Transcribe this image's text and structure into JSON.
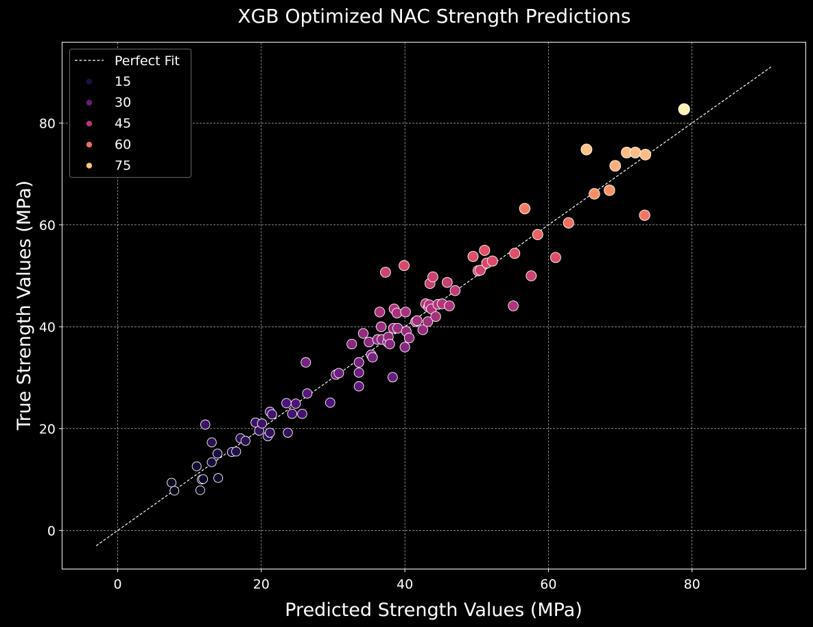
{
  "chart_data": {
    "type": "scatter",
    "title": "XGB Optimized NAC Strength Predictions",
    "xlabel": "Predicted Strength Values (MPa)",
    "ylabel": "True Strength Values (MPa)",
    "xlim": [
      -7.7,
      95.8
    ],
    "ylim": [
      -7.5,
      95.8
    ],
    "xticks": [
      "0",
      "20",
      "40",
      "60",
      "80"
    ],
    "yticks": [
      "0",
      "20",
      "40",
      "60",
      "80"
    ],
    "grid": true,
    "legend_position": "top-left",
    "legend": {
      "line_label": "Perfect Fit",
      "hue_levels": [
        "15",
        "30",
        "45",
        "60",
        "75"
      ]
    },
    "perfect_fit_line": {
      "x": [
        -3,
        91
      ],
      "y": [
        -3,
        91
      ]
    },
    "colors": {
      "background": "#000000",
      "line": "#ffffff",
      "grid": "#ffffff",
      "marker_edge": "#ffffff",
      "palette": "magma"
    },
    "points": [
      [
        7.5,
        9.4,
        9.4
      ],
      [
        7.9,
        7.8,
        7.8
      ],
      [
        11.0,
        12.6,
        12.6
      ],
      [
        11.5,
        7.9,
        7.9
      ],
      [
        11.7,
        10.0,
        10.0
      ],
      [
        11.9,
        10.1,
        10.1
      ],
      [
        12.2,
        20.8,
        20.8
      ],
      [
        13.1,
        17.3,
        17.3
      ],
      [
        13.1,
        13.4,
        13.4
      ],
      [
        13.9,
        15.1,
        15.1
      ],
      [
        14.0,
        10.3,
        10.3
      ],
      [
        15.9,
        15.4,
        15.4
      ],
      [
        16.5,
        15.5,
        15.5
      ],
      [
        17.1,
        18.1,
        18.1
      ],
      [
        17.8,
        17.6,
        17.6
      ],
      [
        19.2,
        21.2,
        21.2
      ],
      [
        19.7,
        19.6,
        19.6
      ],
      [
        20.1,
        21.0,
        21.0
      ],
      [
        20.9,
        18.5,
        18.5
      ],
      [
        21.2,
        19.2,
        19.2
      ],
      [
        21.2,
        23.3,
        23.3
      ],
      [
        21.5,
        22.8,
        22.8
      ],
      [
        23.5,
        25.0,
        25.0
      ],
      [
        23.7,
        19.2,
        19.2
      ],
      [
        24.3,
        22.9,
        22.9
      ],
      [
        24.8,
        24.9,
        24.9
      ],
      [
        25.7,
        22.9,
        22.9
      ],
      [
        26.2,
        33.0,
        33.0
      ],
      [
        26.4,
        26.9,
        26.9
      ],
      [
        29.6,
        25.1,
        25.1
      ],
      [
        30.4,
        30.6,
        30.6
      ],
      [
        30.8,
        30.9,
        30.9
      ],
      [
        32.6,
        36.6,
        36.6
      ],
      [
        33.6,
        33.0,
        33.0
      ],
      [
        33.6,
        31.0,
        31.0
      ],
      [
        33.6,
        28.3,
        28.3
      ],
      [
        34.2,
        38.7,
        38.7
      ],
      [
        35.0,
        37.0,
        37.0
      ],
      [
        35.3,
        34.5,
        34.5
      ],
      [
        35.5,
        34.0,
        34.0
      ],
      [
        36.2,
        37.5,
        37.5
      ],
      [
        36.5,
        42.9,
        42.9
      ],
      [
        36.7,
        40.0,
        40.0
      ],
      [
        36.8,
        37.5,
        37.5
      ],
      [
        37.3,
        50.7,
        50.7
      ],
      [
        37.6,
        37.0,
        37.0
      ],
      [
        37.7,
        38.0,
        38.0
      ],
      [
        37.9,
        36.6,
        36.6
      ],
      [
        38.3,
        30.1,
        30.1
      ],
      [
        38.4,
        39.7,
        39.7
      ],
      [
        38.5,
        43.5,
        43.5
      ],
      [
        38.9,
        42.7,
        42.7
      ],
      [
        39.0,
        39.7,
        39.7
      ],
      [
        39.9,
        52.0,
        52.0
      ],
      [
        40.0,
        36.0,
        36.0
      ],
      [
        40.1,
        42.9,
        42.9
      ],
      [
        40.2,
        39.1,
        39.1
      ],
      [
        40.6,
        37.8,
        37.8
      ],
      [
        41.5,
        41.0,
        41.0
      ],
      [
        41.7,
        41.2,
        41.2
      ],
      [
        42.5,
        39.4,
        39.4
      ],
      [
        42.9,
        44.5,
        44.5
      ],
      [
        43.2,
        41.0,
        41.0
      ],
      [
        43.3,
        43.9,
        43.9
      ],
      [
        43.4,
        44.3,
        44.3
      ],
      [
        43.5,
        48.5,
        48.5
      ],
      [
        43.7,
        43.5,
        43.5
      ],
      [
        43.9,
        49.8,
        49.8
      ],
      [
        44.3,
        42.0,
        42.0
      ],
      [
        44.6,
        44.4,
        44.4
      ],
      [
        45.2,
        44.5,
        44.5
      ],
      [
        45.9,
        48.7,
        48.7
      ],
      [
        46.2,
        44.1,
        44.1
      ],
      [
        47.0,
        47.1,
        47.1
      ],
      [
        49.5,
        53.8,
        53.8
      ],
      [
        50.2,
        51.0,
        51.0
      ],
      [
        50.5,
        51.1,
        51.1
      ],
      [
        51.1,
        55.0,
        55.0
      ],
      [
        51.4,
        52.5,
        52.5
      ],
      [
        52.2,
        52.9,
        52.9
      ],
      [
        55.1,
        44.1,
        44.1
      ],
      [
        55.3,
        54.4,
        54.4
      ],
      [
        56.7,
        63.2,
        63.2
      ],
      [
        57.6,
        50.0,
        50.0
      ],
      [
        58.5,
        58.1,
        58.1
      ],
      [
        61.0,
        53.6,
        53.6
      ],
      [
        62.8,
        60.4,
        60.4
      ],
      [
        65.3,
        74.8,
        74.8
      ],
      [
        66.4,
        66.1,
        66.1
      ],
      [
        68.5,
        66.8,
        66.8
      ],
      [
        69.3,
        71.6,
        71.6
      ],
      [
        70.9,
        74.2,
        74.2
      ],
      [
        72.1,
        74.2,
        74.2
      ],
      [
        73.4,
        61.9,
        61.9
      ],
      [
        73.5,
        73.8,
        73.8
      ],
      [
        78.9,
        82.7,
        82.7
      ]
    ]
  }
}
